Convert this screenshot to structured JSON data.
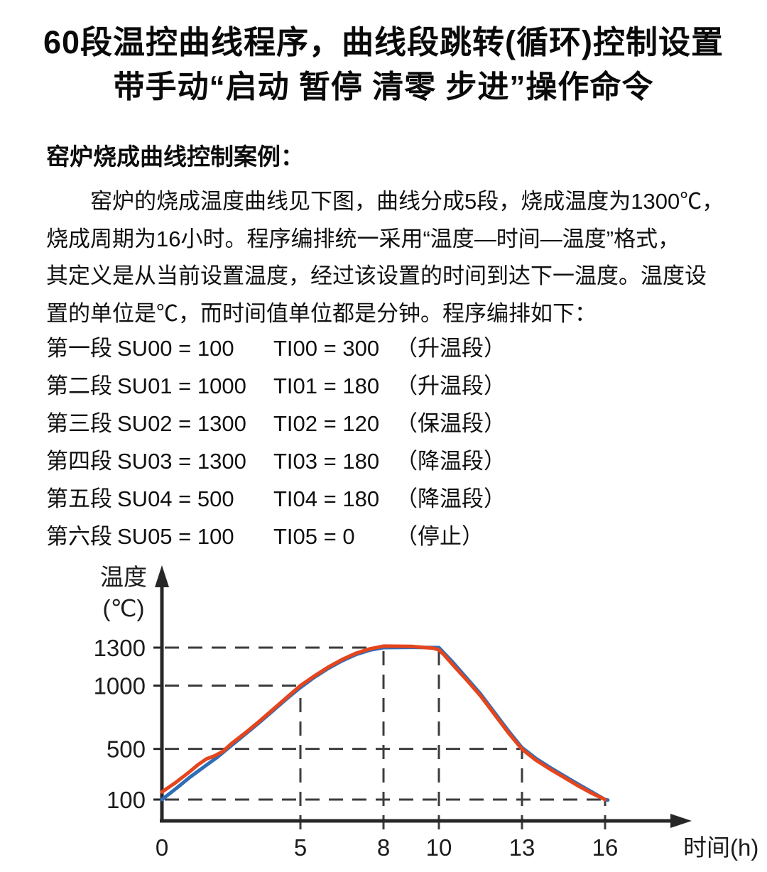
{
  "title": {
    "line1": "60段温控曲线程序，曲线段跳转(循环)控制设置",
    "line2": "带手动“启动 暂停 清零 步进”操作命令"
  },
  "section_heading": "窑炉烧成曲线控制案例：",
  "paragraph": {
    "lines": [
      "窑炉的烧成温度曲线见下图，曲线分成5段，烧成温度为1300℃，",
      "烧成周期为16小时。程序编排统一采用“温度—时间—温度”格式，",
      "其定义是从当前设置温度，经过该设置的时间到达下一温度。温度设",
      "置的单位是℃，而时间值单位都是分钟。程序编排如下："
    ]
  },
  "program_lines": [
    {
      "segment": "第一段",
      "su": "SU00 = 100",
      "ti": "TI00 = 300",
      "note": "（升温段）"
    },
    {
      "segment": "第二段",
      "su": "SU01 = 1000",
      "ti": "TI01 = 180",
      "note": "（升温段）"
    },
    {
      "segment": "第三段",
      "su": "SU02 = 1300",
      "ti": "TI02 = 120",
      "note": "（保温段）"
    },
    {
      "segment": "第四段",
      "su": "SU03 = 1300",
      "ti": "TI03 = 180",
      "note": "（降温段）"
    },
    {
      "segment": "第五段",
      "su": "SU04 = 500",
      "ti": "TI04 = 180",
      "note": "（降温段）"
    },
    {
      "segment": "第六段",
      "su": "SU05 = 100",
      "ti": "TI05 = 0",
      "note": "（停止）"
    }
  ],
  "chart_data": {
    "type": "line",
    "title": "",
    "xlabel": "时间(h)",
    "ylabel": "温度",
    "ylabel_unit": "(℃)",
    "x_ticks": [
      0,
      5,
      8,
      10,
      13,
      16
    ],
    "y_ticks": [
      100,
      500,
      1000,
      1300
    ],
    "xlim": [
      0,
      17.5
    ],
    "ylim": [
      0,
      1965
    ],
    "legend_position": "none",
    "grid": "dashed construction lines only",
    "colors": {
      "set_curve_blue": "#2e6db8",
      "actual_curve_red": "#e5451d",
      "axis": "#272727",
      "dash": "#3c3c3c"
    },
    "key_points": {
      "t_hours": [
        0,
        5,
        8,
        10,
        13,
        16
      ],
      "temp_c": [
        100,
        1000,
        1300,
        1300,
        500,
        100
      ]
    },
    "series": [
      {
        "name": "set-curve-blue",
        "color": "#2e6db8",
        "points": [
          [
            0,
            100
          ],
          [
            0.5,
            185
          ],
          [
            1,
            275
          ],
          [
            1.5,
            355
          ],
          [
            2,
            435
          ],
          [
            2.5,
            525
          ],
          [
            3,
            615
          ],
          [
            3.5,
            705
          ],
          [
            4,
            800
          ],
          [
            4.5,
            895
          ],
          [
            5,
            985
          ],
          [
            5.5,
            1065
          ],
          [
            6,
            1135
          ],
          [
            6.5,
            1195
          ],
          [
            7,
            1245
          ],
          [
            7.5,
            1280
          ],
          [
            8,
            1300
          ],
          [
            9,
            1302
          ],
          [
            10,
            1300
          ],
          [
            10.15,
            1265
          ],
          [
            10.5,
            1185
          ],
          [
            11,
            1060
          ],
          [
            11.5,
            935
          ],
          [
            12,
            790
          ],
          [
            12.5,
            645
          ],
          [
            13,
            510
          ],
          [
            13.5,
            425
          ],
          [
            14,
            355
          ],
          [
            14.5,
            290
          ],
          [
            15,
            225
          ],
          [
            15.5,
            163
          ],
          [
            16,
            100
          ],
          [
            16.1,
            96
          ]
        ]
      },
      {
        "name": "actual-curve-red",
        "color": "#e5451d",
        "points": [
          [
            0,
            160
          ],
          [
            0.5,
            235
          ],
          [
            1,
            320
          ],
          [
            1.3,
            375
          ],
          [
            1.6,
            420
          ],
          [
            1.9,
            445
          ],
          [
            2.2,
            480
          ],
          [
            2.5,
            540
          ],
          [
            3,
            625
          ],
          [
            3.5,
            715
          ],
          [
            4,
            810
          ],
          [
            4.5,
            905
          ],
          [
            5,
            1000
          ],
          [
            5.5,
            1075
          ],
          [
            6,
            1145
          ],
          [
            6.5,
            1205
          ],
          [
            7,
            1255
          ],
          [
            7.5,
            1290
          ],
          [
            8,
            1312
          ],
          [
            9,
            1310
          ],
          [
            9.8,
            1295
          ],
          [
            10,
            1282
          ],
          [
            10.2,
            1240
          ],
          [
            10.5,
            1165
          ],
          [
            11,
            1045
          ],
          [
            11.5,
            920
          ],
          [
            12,
            775
          ],
          [
            12.5,
            630
          ],
          [
            13,
            498
          ],
          [
            13.5,
            412
          ],
          [
            14,
            342
          ],
          [
            14.5,
            278
          ],
          [
            15,
            212
          ],
          [
            15.5,
            152
          ],
          [
            16,
            100
          ]
        ]
      }
    ],
    "gridlines": {
      "horizontal": [
        {
          "y": 1300,
          "x_end": 7.75
        },
        {
          "y": 1000,
          "x_end": 5
        },
        {
          "y": 500,
          "x_end": 13.05
        },
        {
          "y": 100,
          "x_end": 15.9
        }
      ],
      "vertical": [
        {
          "x": 5,
          "y_top": 1000
        },
        {
          "x": 8,
          "y_top": 1300
        },
        {
          "x": 10,
          "y_top": 1300
        },
        {
          "x": 13,
          "y_top": 500
        },
        {
          "x": 16,
          "y_top": 100
        }
      ]
    }
  }
}
